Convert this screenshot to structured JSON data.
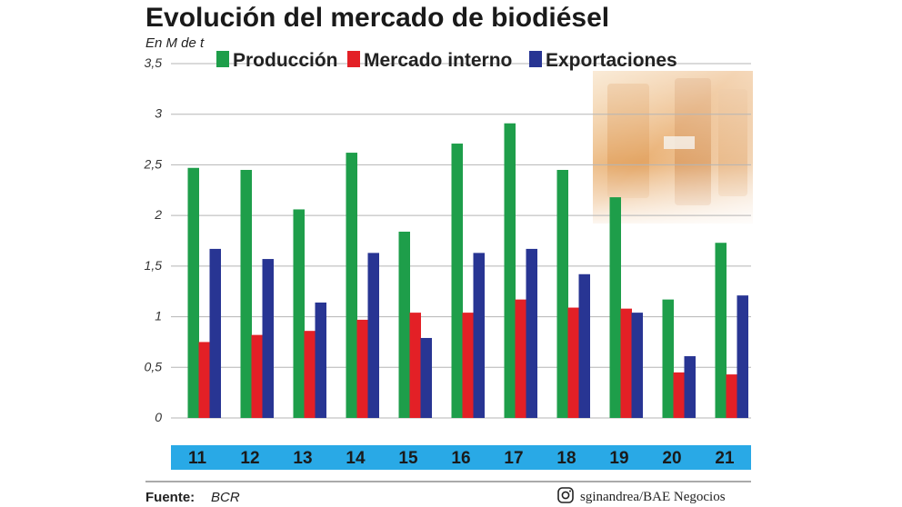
{
  "header": {
    "title": "Evolución del mercado de biodiésel",
    "unit": "En M de t"
  },
  "footer": {
    "source_label": "Fuente:",
    "source_value": "BCR",
    "credit": "sginandrea/BAE Negocios",
    "credit_icon": "instagram-icon"
  },
  "colors": {
    "produccion": "#1e9e4a",
    "mercado": "#e32026",
    "exportaciones": "#283593",
    "category_band": "#29a9e6",
    "grid": "#b5b5b5"
  },
  "chart_data": {
    "type": "bar",
    "title": "Evolución del mercado de biodiésel",
    "ylabel": "En M de t",
    "xlabel": "",
    "categories": [
      "11",
      "12",
      "13",
      "14",
      "15",
      "16",
      "17",
      "18",
      "19",
      "20",
      "21"
    ],
    "ylim": [
      0,
      3.5
    ],
    "yticks": [
      0,
      0.5,
      1,
      1.5,
      2,
      2.5,
      3,
      3.5
    ],
    "ytick_labels": [
      "0",
      "0,5",
      "1",
      "1,5",
      "2",
      "2,5",
      "3",
      "3,5"
    ],
    "grid": true,
    "legend": "top",
    "series": [
      {
        "name": "Producción",
        "color": "#1e9e4a",
        "values": [
          2.47,
          2.45,
          2.06,
          2.62,
          1.84,
          2.71,
          2.91,
          2.45,
          2.18,
          1.17,
          1.73
        ]
      },
      {
        "name": "Mercado interno",
        "color": "#e32026",
        "values": [
          0.75,
          0.82,
          0.86,
          0.97,
          1.04,
          1.04,
          1.17,
          1.09,
          1.08,
          0.45,
          0.43
        ]
      },
      {
        "name": "Exportaciones",
        "color": "#283593",
        "values": [
          1.67,
          1.57,
          1.14,
          1.63,
          0.79,
          1.63,
          1.67,
          1.42,
          1.04,
          0.61,
          1.21
        ]
      }
    ]
  }
}
